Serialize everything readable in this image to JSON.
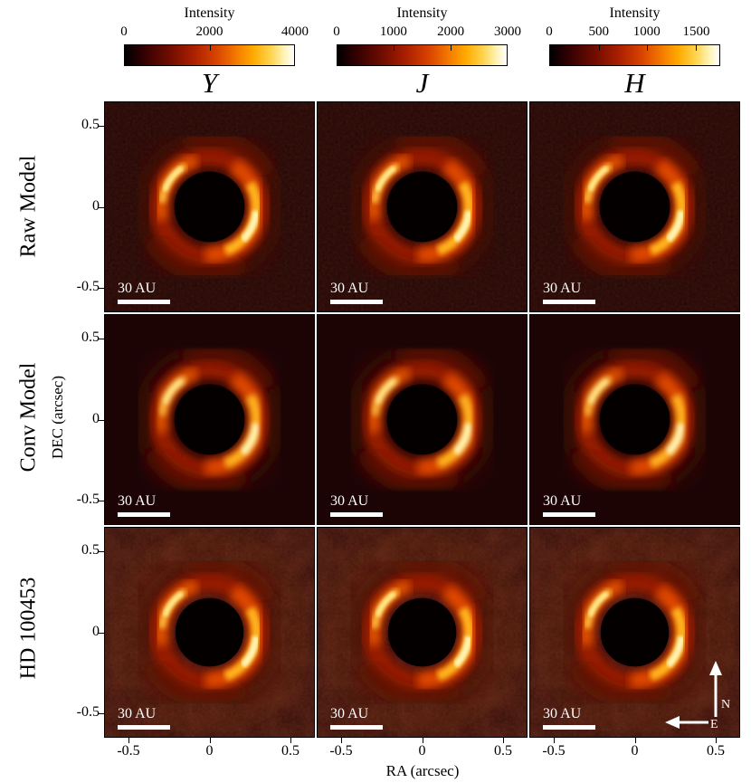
{
  "header": {
    "colorbars": [
      {
        "label": "Intensity",
        "ticks": [
          "0",
          "2000",
          "4000"
        ],
        "tick_pos": [
          0,
          50,
          100
        ]
      },
      {
        "label": "Intensity",
        "ticks": [
          "0",
          "1000",
          "2000",
          "3000"
        ],
        "tick_pos": [
          0,
          33.3,
          66.7,
          100
        ]
      },
      {
        "label": "Intensity",
        "ticks": [
          "0",
          "500",
          "1000",
          "1500"
        ],
        "tick_pos": [
          0,
          29,
          57,
          86
        ]
      }
    ],
    "column_titles": [
      "Y",
      "J",
      "H"
    ]
  },
  "rows": [
    {
      "label": "Raw Model"
    },
    {
      "label": "Conv Model"
    },
    {
      "label": "HD 100453"
    }
  ],
  "axes": {
    "xlabel": "RA (arcsec)",
    "ylabel": "DEC (arcsec)",
    "x_tick_labels": [
      "-0.5",
      "0",
      "0.5"
    ],
    "y_tick_labels": [
      "0.5",
      "0",
      "-0.5"
    ]
  },
  "panel": {
    "scalebar_label": "30 AU"
  },
  "compass": {
    "north": "N",
    "east": "E"
  },
  "chart_data": {
    "type": "heatmap",
    "layout": "3x3 image grid",
    "rows": [
      "Raw Model",
      "Conv Model",
      "HD 100453"
    ],
    "columns": [
      "Y",
      "J",
      "H"
    ],
    "xlabel": "RA (arcsec)",
    "ylabel": "DEC (arcsec)",
    "xlim": [
      -0.65,
      0.65
    ],
    "ylim": [
      -0.65,
      0.65
    ],
    "x_ticks": [
      -0.5,
      0,
      0.5
    ],
    "y_ticks": [
      0.5,
      0,
      -0.5
    ],
    "colorbars": [
      {
        "column": "Y",
        "label": "Intensity",
        "range": [
          0,
          4000
        ],
        "ticks": [
          0,
          2000,
          4000
        ]
      },
      {
        "column": "J",
        "label": "Intensity",
        "range": [
          0,
          3000
        ],
        "ticks": [
          0,
          1000,
          2000,
          3000
        ]
      },
      {
        "column": "H",
        "label": "Intensity",
        "range": [
          0,
          1750
        ],
        "ticks": [
          0,
          500,
          1000,
          1500
        ]
      }
    ],
    "colormap": "black-red-orange-yellow-white (heat)",
    "scalebar_label": "30 AU",
    "compass": {
      "up": "N",
      "left": "E"
    },
    "content": "Protoplanetary disk ring with two bright arcs and faint spiral tails around a central dark coronagraphic mask in every panel"
  }
}
